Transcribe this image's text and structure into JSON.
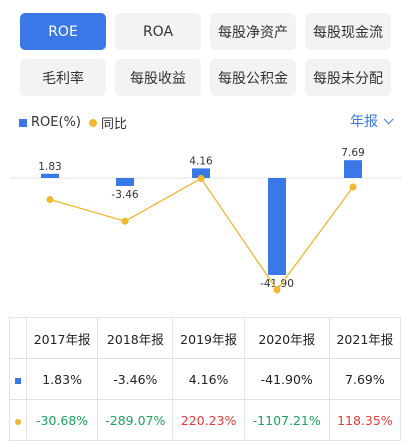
{
  "tabs": [
    {
      "label": "ROE",
      "active": true
    },
    {
      "label": "ROA",
      "active": false
    },
    {
      "label": "每股净资产",
      "active": false
    },
    {
      "label": "每股现金流",
      "active": false
    },
    {
      "label": "毛利率",
      "active": false
    },
    {
      "label": "每股收益",
      "active": false
    },
    {
      "label": "每股公积金",
      "active": false
    },
    {
      "label": "每股未分配",
      "active": false
    }
  ],
  "legend": {
    "series1": "ROE(%)",
    "series2": "同比"
  },
  "period_selector": {
    "label": "年报",
    "icon": "chevron-down-icon"
  },
  "colors": {
    "accent": "#3a78e8",
    "bar": "#3a78e8",
    "line": "#f2b630",
    "negative": "#1aa35b",
    "positive": "#e53b3b"
  },
  "chart_data": {
    "type": "bar",
    "categories": [
      "2017年报",
      "2018年报",
      "2019年报",
      "2020年报",
      "2021年报"
    ],
    "series": [
      {
        "name": "ROE(%)",
        "type": "bar",
        "values": [
          1.83,
          -3.46,
          4.16,
          -41.9,
          7.69
        ],
        "labels": [
          "1.83",
          "-3.46",
          "4.16",
          "-41.90",
          "7.69"
        ]
      },
      {
        "name": "同比",
        "type": "line",
        "values": [
          -30.68,
          -289.07,
          220.23,
          -1107.21,
          118.35
        ]
      }
    ]
  },
  "table": {
    "headers": [
      "2017年报",
      "2018年报",
      "2019年报",
      "2020年报",
      "2021年报"
    ],
    "rows": [
      {
        "marker": "bar",
        "values": [
          "1.83%",
          "-3.46%",
          "4.16%",
          "-41.90%",
          "7.69%"
        ]
      },
      {
        "marker": "line",
        "values": [
          "-30.68%",
          "-289.07%",
          "220.23%",
          "-1107.21%",
          "118.35%"
        ]
      }
    ]
  }
}
